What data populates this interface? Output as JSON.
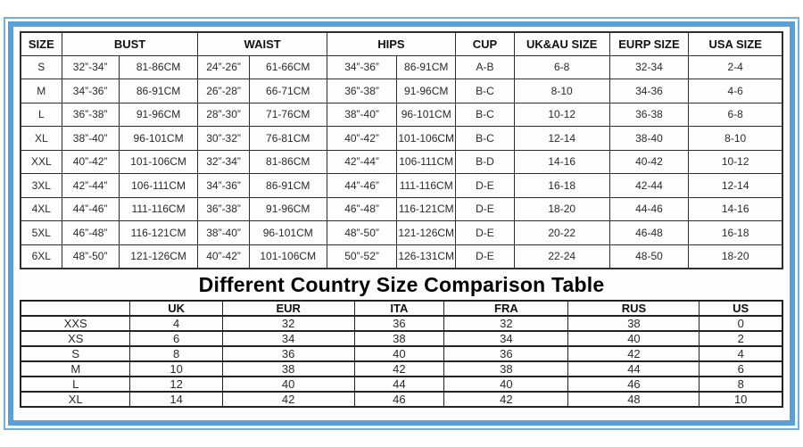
{
  "accent_color": "#58a0d6",
  "table_border_color": "#2e2e2e",
  "comparison_title": "Different Country Size Comparison Table",
  "chart_data": [
    {
      "type": "table",
      "title": "",
      "header": [
        {
          "label": "SIZE",
          "span": 1
        },
        {
          "label": "BUST",
          "span": 2
        },
        {
          "label": "WAIST",
          "span": 2
        },
        {
          "label": "HIPS",
          "span": 2
        },
        {
          "label": "CUP",
          "span": 1
        },
        {
          "label": "UK&AU SIZE",
          "span": 1
        },
        {
          "label": "EURP SIZE",
          "span": 1
        },
        {
          "label": "USA SIZE",
          "span": 1
        }
      ],
      "sub_columns": [
        "size",
        "bust_inches",
        "bust_cm",
        "waist_inches",
        "waist_cm",
        "hips_inches",
        "hips_cm",
        "cup",
        "uk_au_size",
        "eurp_size",
        "usa_size"
      ],
      "rows": [
        [
          "S",
          "32”-34”",
          "81-86CM",
          "24”-26”",
          "61-66CM",
          "34”-36”",
          "86-91CM",
          "A-B",
          "6-8",
          "32-34",
          "2-4"
        ],
        [
          "M",
          "34”-36”",
          "86-91CM",
          "26”-28”",
          "66-71CM",
          "36”-38”",
          "91-96CM",
          "B-C",
          "8-10",
          "34-36",
          "4-6"
        ],
        [
          "L",
          "36”-38”",
          "91-96CM",
          "28”-30”",
          "71-76CM",
          "38”-40”",
          "96-101CM",
          "B-C",
          "10-12",
          "36-38",
          "6-8"
        ],
        [
          "XL",
          "38”-40”",
          "96-101CM",
          "30”-32”",
          "76-81CM",
          "40”-42”",
          "101-106CM",
          "B-C",
          "12-14",
          "38-40",
          "8-10"
        ],
        [
          "XXL",
          "40”-42”",
          "101-106CM",
          "32”-34”",
          "81-86CM",
          "42”-44”",
          "106-111CM",
          "B-D",
          "14-16",
          "40-42",
          "10-12"
        ],
        [
          "3XL",
          "42”-44”",
          "106-111CM",
          "34”-36”",
          "86-91CM",
          "44”-46”",
          "111-116CM",
          "D-E",
          "16-18",
          "42-44",
          "12-14"
        ],
        [
          "4XL",
          "44”-46”",
          "111-116CM",
          "36”-38”",
          "91-96CM",
          "46”-48”",
          "116-121CM",
          "D-E",
          "18-20",
          "44-46",
          "14-16"
        ],
        [
          "5XL",
          "46”-48”",
          "116-121CM",
          "38”-40”",
          "96-101CM",
          "48”-50”",
          "121-126CM",
          "D-E",
          "20-22",
          "46-48",
          "16-18"
        ],
        [
          "6XL",
          "48”-50”",
          "121-126CM",
          "40”-42”",
          "101-106CM",
          "50”-52”",
          "126-131CM",
          "D-E",
          "22-24",
          "48-50",
          "18-20"
        ]
      ]
    },
    {
      "type": "table",
      "title": "Different Country Size Comparison Table",
      "header": [
        {
          "label": "",
          "span": 1
        },
        {
          "label": "UK",
          "span": 1
        },
        {
          "label": "EUR",
          "span": 1
        },
        {
          "label": "ITA",
          "span": 1
        },
        {
          "label": "FRA",
          "span": 1
        },
        {
          "label": "RUS",
          "span": 1
        },
        {
          "label": "US",
          "span": 1
        }
      ],
      "rows": [
        [
          "XXS",
          "4",
          "32",
          "36",
          "32",
          "38",
          "0"
        ],
        [
          "XS",
          "6",
          "34",
          "38",
          "34",
          "40",
          "2"
        ],
        [
          "S",
          "8",
          "36",
          "40",
          "36",
          "42",
          "4"
        ],
        [
          "M",
          "10",
          "38",
          "42",
          "38",
          "44",
          "6"
        ],
        [
          "L",
          "12",
          "40",
          "44",
          "40",
          "46",
          "8"
        ],
        [
          "XL",
          "14",
          "42",
          "46",
          "42",
          "48",
          "10"
        ]
      ]
    }
  ]
}
